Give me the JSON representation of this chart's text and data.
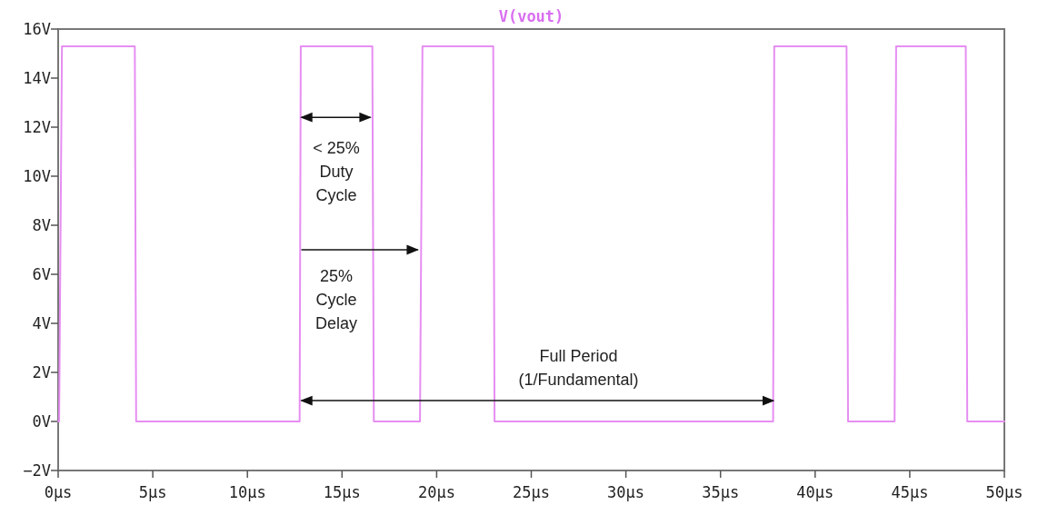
{
  "chart_data": {
    "type": "line",
    "title": "V(vout)",
    "series": [
      {
        "color": "#e68ef2",
        "x": [
          0,
          0.05,
          0.2,
          4.05,
          4.12,
          12.76,
          12.82,
          16.6,
          16.68,
          19.12,
          19.25,
          22.99,
          23.06,
          37.78,
          37.84,
          41.66,
          41.74,
          44.2,
          44.28,
          47.96,
          48.04,
          50
        ],
        "values": [
          0,
          0,
          15.3,
          15.3,
          0,
          0,
          15.3,
          15.3,
          0,
          0,
          15.3,
          15.3,
          0,
          0,
          15.3,
          15.3,
          0,
          0,
          15.3,
          15.3,
          0,
          0
        ]
      }
    ],
    "xlim": [
      0,
      50
    ],
    "ylim": [
      -2,
      16
    ],
    "xticks": [
      {
        "value": 0,
        "label": "0µs"
      },
      {
        "value": 5,
        "label": "5µs"
      },
      {
        "value": 10,
        "label": "10µs"
      },
      {
        "value": 15,
        "label": "15µs"
      },
      {
        "value": 20,
        "label": "20µs"
      },
      {
        "value": 25,
        "label": "25µs"
      },
      {
        "value": 30,
        "label": "30µs"
      },
      {
        "value": 35,
        "label": "35µs"
      },
      {
        "value": 40,
        "label": "40µs"
      },
      {
        "value": 45,
        "label": "45µs"
      },
      {
        "value": 50,
        "label": "50µs"
      }
    ],
    "yticks": [
      {
        "value": -2,
        "label": "−2V"
      },
      {
        "value": 0,
        "label": "0V"
      },
      {
        "value": 2,
        "label": "2V"
      },
      {
        "value": 4,
        "label": "4V"
      },
      {
        "value": 6,
        "label": "6V"
      },
      {
        "value": 8,
        "label": "8V"
      },
      {
        "value": 10,
        "label": "10V"
      },
      {
        "value": 12,
        "label": "12V"
      },
      {
        "value": 14,
        "label": "14V"
      },
      {
        "value": 16,
        "label": "16V"
      }
    ],
    "annotations": [
      "< 25%\nDuty\nCycle",
      "25%\nCycle\nDelay",
      "Full Period\n(1/Fundamental)"
    ],
    "grid": false,
    "marker": "none",
    "line_style": "solid"
  }
}
